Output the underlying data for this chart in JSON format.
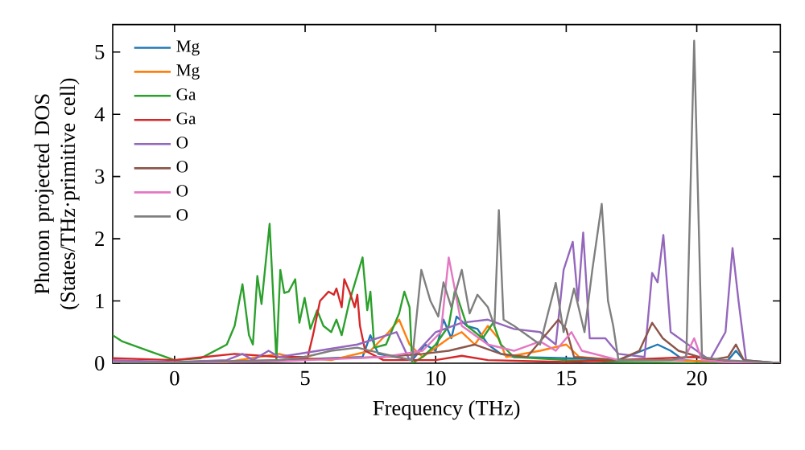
{
  "chart_data": {
    "type": "line",
    "xlabel": "Frequency (THz)",
    "ylabel": "Phonon projected DOS (States/THz·primitive cell)",
    "xlim": [
      -2.37,
      23.2
    ],
    "ylim": [
      0,
      5.44
    ],
    "xticks": [
      0,
      5,
      10,
      15,
      20
    ],
    "yticks": [
      0,
      1,
      2,
      3,
      4,
      5
    ],
    "grid": false,
    "legend": "top left",
    "series": [
      {
        "name": "Mg",
        "color": "#1f77b4",
        "x": [
          4,
          6,
          7.2,
          7.5,
          7.8,
          9.1,
          9.6,
          10,
          10.3,
          10.6,
          10.8,
          11.2,
          11.6,
          12,
          12.5,
          13,
          15,
          17,
          18.5,
          19,
          19.5,
          20.5,
          21.2,
          21.5,
          21.8,
          23.2
        ],
        "values": [
          0.05,
          0.08,
          0.1,
          0.45,
          0.15,
          0.05,
          0.3,
          0.2,
          0.7,
          0.4,
          0.75,
          0.6,
          0.55,
          0.3,
          0.15,
          0.1,
          0.08,
          0.05,
          0.3,
          0.2,
          0.05,
          0.02,
          0.05,
          0.2,
          0.05,
          0
        ]
      },
      {
        "name": "Mg",
        "color": "#ff7f0e",
        "x": [
          -2.37,
          0,
          2,
          4,
          4.5,
          6,
          7.5,
          8.2,
          8.6,
          9.0,
          9.5,
          10,
          10.5,
          11,
          11.5,
          12,
          12.4,
          12.7,
          14,
          15,
          15.5,
          17,
          19,
          21,
          23.2
        ],
        "values": [
          0.03,
          0.01,
          0.02,
          0.15,
          0.1,
          0.05,
          0.2,
          0.5,
          0.7,
          0.3,
          0.1,
          0.25,
          0.4,
          0.5,
          0.3,
          0.6,
          0.4,
          0.1,
          0.2,
          0.3,
          0.1,
          0.05,
          0.05,
          0.02,
          0
        ]
      },
      {
        "name": "Ga",
        "color": "#2ca02c",
        "x": [
          -2.37,
          -2,
          -1,
          0,
          1,
          2,
          2.3,
          2.6,
          2.85,
          3.0,
          3.17,
          3.33,
          3.64,
          3.9,
          4.05,
          4.2,
          4.37,
          4.62,
          4.78,
          4.98,
          5.2,
          5.46,
          5.7,
          6.0,
          6.2,
          6.4,
          6.7,
          7.2,
          7.38,
          7.5,
          7.65,
          8.1,
          8.4,
          8.6,
          8.8,
          9.0,
          9.1,
          9.5,
          10,
          10.5,
          10.74,
          11.2,
          11.8,
          12.2,
          12.5,
          13,
          15,
          17,
          20,
          23.2
        ],
        "values": [
          0.45,
          0.35,
          0.2,
          0.05,
          0.08,
          0.3,
          0.6,
          1.27,
          0.45,
          0.3,
          1.4,
          0.95,
          2.24,
          0.05,
          1.5,
          1.13,
          1.15,
          1.35,
          0.65,
          1.05,
          0.55,
          0.85,
          0.6,
          0.5,
          0.7,
          0.45,
          1.0,
          1.7,
          0.85,
          1.15,
          0.25,
          0.3,
          0.6,
          0.8,
          1.15,
          0.9,
          0,
          0.1,
          0.3,
          0.6,
          1.18,
          0.6,
          0.4,
          0.65,
          0.3,
          0.1,
          0.05,
          0.02,
          0,
          0
        ]
      },
      {
        "name": "Ga",
        "color": "#d62728",
        "x": [
          -2.37,
          0,
          2.3,
          4,
          5.1,
          5.3,
          5.57,
          5.9,
          6.1,
          6.2,
          6.4,
          6.5,
          6.7,
          6.9,
          7.0,
          7.1,
          7.3,
          8,
          10,
          11,
          12,
          15,
          19.9,
          22,
          23.2
        ],
        "values": [
          0.08,
          0.05,
          0.15,
          0.1,
          0.1,
          0.45,
          1.0,
          1.15,
          1.1,
          1.2,
          0.9,
          1.35,
          1.15,
          0.9,
          1.1,
          0.6,
          0.2,
          0.05,
          0.05,
          0.12,
          0.05,
          0.02,
          0.1,
          0,
          0
        ]
      },
      {
        "name": "O",
        "color": "#9467bd",
        "x": [
          -2.37,
          0,
          2,
          2.6,
          3.0,
          3.6,
          4,
          7,
          8.5,
          9,
          10,
          11,
          12,
          13,
          14,
          14.6,
          14.9,
          15.25,
          15.45,
          15.65,
          15.9,
          16.5,
          17,
          18,
          18.29,
          18.5,
          18.72,
          19.0,
          20.5,
          21.1,
          21.37,
          21.6,
          21.9,
          23.2
        ],
        "values": [
          0.05,
          0.02,
          0.05,
          0.15,
          0.05,
          0.2,
          0.1,
          0.3,
          0.5,
          0.05,
          0.5,
          0.65,
          0.7,
          0.55,
          0.5,
          0.3,
          1.5,
          1.95,
          1.0,
          2.1,
          0.4,
          0.4,
          0.15,
          0.1,
          1.45,
          1.3,
          2.06,
          0.5,
          0.05,
          0.5,
          1.85,
          1.0,
          0,
          0
        ]
      },
      {
        "name": "O",
        "color": "#8c564b",
        "x": [
          -2.37,
          0,
          4,
          8,
          9.5,
          10.5,
          11.5,
          12.5,
          13.5,
          14.7,
          15,
          15.3,
          17,
          17.8,
          18.29,
          18.7,
          19.3,
          20.5,
          21.2,
          21.5,
          21.8,
          23.2
        ],
        "values": [
          0.02,
          0.01,
          0.05,
          0.1,
          0.15,
          0.2,
          0.3,
          0.15,
          0.1,
          0.7,
          0.55,
          0.1,
          0.05,
          0.2,
          0.65,
          0.4,
          0.2,
          0.05,
          0.1,
          0.3,
          0.05,
          0
        ]
      },
      {
        "name": "O",
        "color": "#e377c2",
        "x": [
          -2.37,
          0,
          4,
          8,
          9.5,
          10.2,
          10.5,
          11,
          12,
          13,
          14,
          14.6,
          15.2,
          15.6,
          17,
          19.5,
          19.9,
          20.2,
          21,
          23.2
        ],
        "values": [
          0.02,
          0.01,
          0.03,
          0.1,
          0.2,
          0.5,
          1.7,
          0.6,
          0.3,
          0.2,
          0.35,
          0.2,
          0.5,
          0.2,
          0.05,
          0.05,
          0.4,
          0.05,
          0.02,
          0
        ]
      },
      {
        "name": "O",
        "color": "#7f7f7f",
        "x": [
          -2.37,
          0,
          4,
          5,
          6,
          7,
          8,
          9.1,
          9.45,
          9.8,
          10.1,
          10.3,
          10.6,
          11.0,
          11.3,
          11.6,
          12.0,
          12.25,
          12.42,
          12.6,
          13.0,
          14.0,
          14.3,
          14.6,
          14.9,
          15.3,
          15.7,
          16.0,
          16.36,
          16.6,
          16.8,
          17.0,
          19.0,
          19.6,
          19.9,
          20.2,
          21,
          23.2
        ],
        "values": [
          0.01,
          0.01,
          0.05,
          0.1,
          0.2,
          0.25,
          0.15,
          0.05,
          1.5,
          1.0,
          0.75,
          1.3,
          0.9,
          1.5,
          0.8,
          1.1,
          0.9,
          0.6,
          2.46,
          0.7,
          0.6,
          0.3,
          0.8,
          1.29,
          0.5,
          1.2,
          0.5,
          1.5,
          2.56,
          1.0,
          0.6,
          0.05,
          0.05,
          0.1,
          5.18,
          0.1,
          0.05,
          0
        ]
      }
    ]
  }
}
